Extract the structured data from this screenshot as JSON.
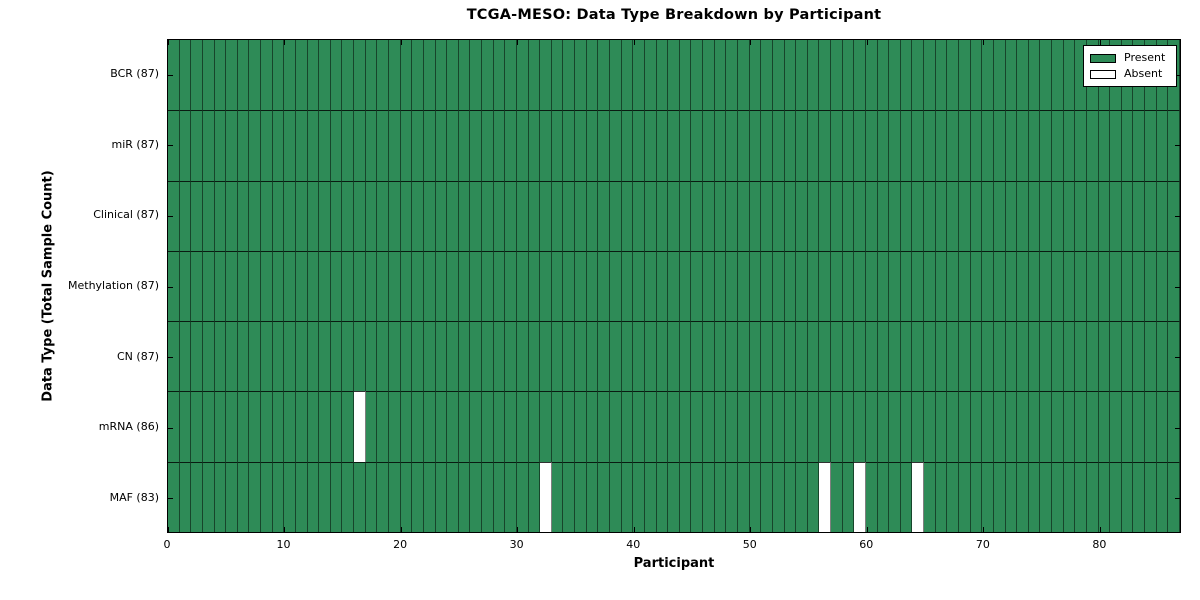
{
  "chart_data": {
    "type": "heatmap",
    "title": "TCGA-MESO: Data Type Breakdown by Participant",
    "xlabel": "Participant",
    "ylabel": "Data Type (Total Sample Count)",
    "xlim": [
      0,
      87
    ],
    "n_participants": 87,
    "x_ticks": [
      0,
      10,
      20,
      30,
      40,
      50,
      60,
      70,
      80
    ],
    "grid": "per-cell-borders",
    "legend_position": "upper-right",
    "legend": [
      {
        "label": "Present",
        "color": "#2E8B57"
      },
      {
        "label": "Absent",
        "color": "#FFFFFF"
      }
    ],
    "colors": {
      "present": "#2E8B57",
      "absent": "#FFFFFF",
      "frame": "#000000"
    },
    "rows": [
      {
        "name": "BCR",
        "label": "BCR (87)",
        "total": 87,
        "absent_participants": []
      },
      {
        "name": "miR",
        "label": "miR (87)",
        "total": 87,
        "absent_participants": []
      },
      {
        "name": "Clinical",
        "label": "Clinical (87)",
        "total": 87,
        "absent_participants": []
      },
      {
        "name": "Methylation",
        "label": "Methylation (87)",
        "total": 87,
        "absent_participants": []
      },
      {
        "name": "CN",
        "label": "CN (87)",
        "total": 87,
        "absent_participants": []
      },
      {
        "name": "mRNA",
        "label": "mRNA (86)",
        "total": 86,
        "absent_participants": [
          16
        ]
      },
      {
        "name": "MAF",
        "label": "MAF (83)",
        "total": 83,
        "absent_participants": [
          32,
          56,
          59,
          64
        ]
      }
    ]
  }
}
